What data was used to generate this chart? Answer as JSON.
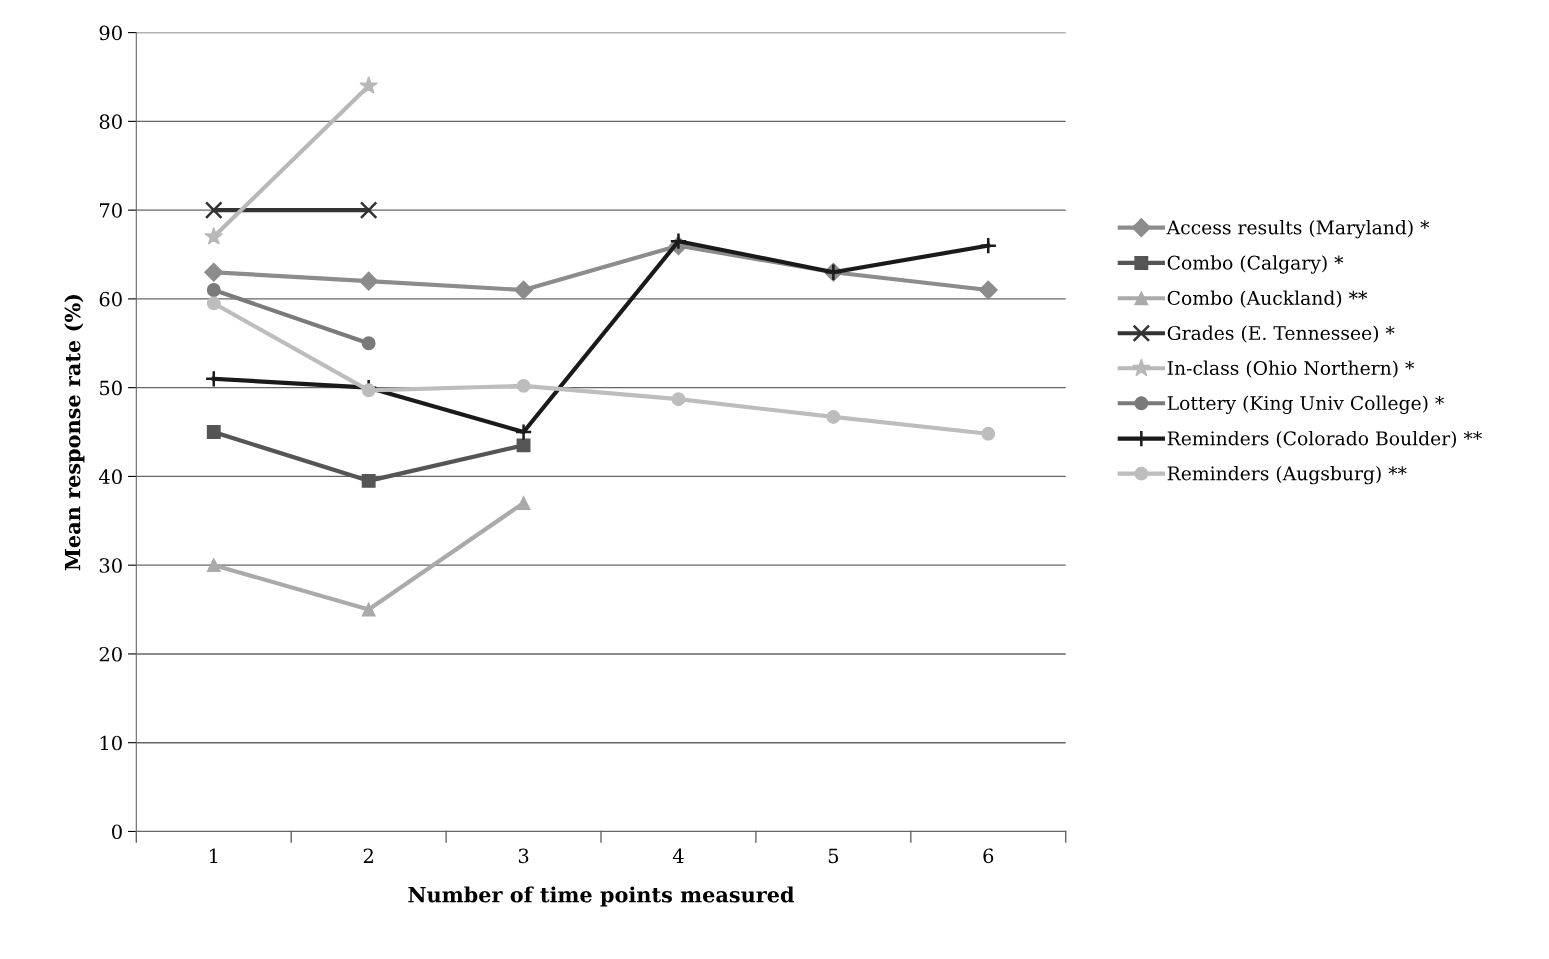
{
  "chart_data": {
    "type": "line",
    "xlabel": "Number of time points measured",
    "ylabel": "Mean response rate (%)",
    "x": [
      1,
      2,
      3,
      4,
      5,
      6
    ],
    "xlim": [
      0.5,
      6.5
    ],
    "xticks": [
      1,
      2,
      3,
      4,
      5,
      6
    ],
    "ylim": [
      0,
      90
    ],
    "yticks": [
      0,
      10,
      20,
      30,
      40,
      50,
      60,
      70,
      80,
      90
    ],
    "grid": "y",
    "legend": "right",
    "series": [
      {
        "name": "Access results (Maryland) *",
        "color": "#8c8c8c",
        "marker": "diamond",
        "values": [
          63,
          62,
          61,
          66,
          63,
          61
        ]
      },
      {
        "name": "Combo (Calgary) *",
        "color": "#555555",
        "marker": "square",
        "values": [
          45,
          39.5,
          43.5,
          null,
          null,
          null
        ]
      },
      {
        "name": "Combo (Auckland) **",
        "color": "#aaaaaa",
        "marker": "triangle",
        "values": [
          30,
          25,
          37,
          null,
          null,
          null
        ]
      },
      {
        "name": "Grades (E. Tennessee) *",
        "color": "#333333",
        "marker": "cross",
        "values": [
          70,
          70,
          null,
          null,
          null,
          null
        ]
      },
      {
        "name": "In-class (Ohio Northern) *",
        "color": "#b8b8b8",
        "marker": "star",
        "values": [
          67,
          84,
          null,
          null,
          null,
          null
        ]
      },
      {
        "name": "Lottery (King Univ College) *",
        "color": "#7a7a7a",
        "marker": "circle",
        "values": [
          61,
          55,
          null,
          null,
          null,
          null
        ]
      },
      {
        "name": "Reminders (Colorado Boulder) **",
        "color": "#1a1a1a",
        "marker": "plus",
        "values": [
          51,
          50,
          45,
          66.5,
          63,
          66
        ]
      },
      {
        "name": "Reminders (Augsburg) **",
        "color": "#bdbdbd",
        "marker": "circle",
        "values": [
          59.5,
          49.7,
          50.2,
          48.7,
          46.7,
          44.8
        ]
      }
    ]
  }
}
